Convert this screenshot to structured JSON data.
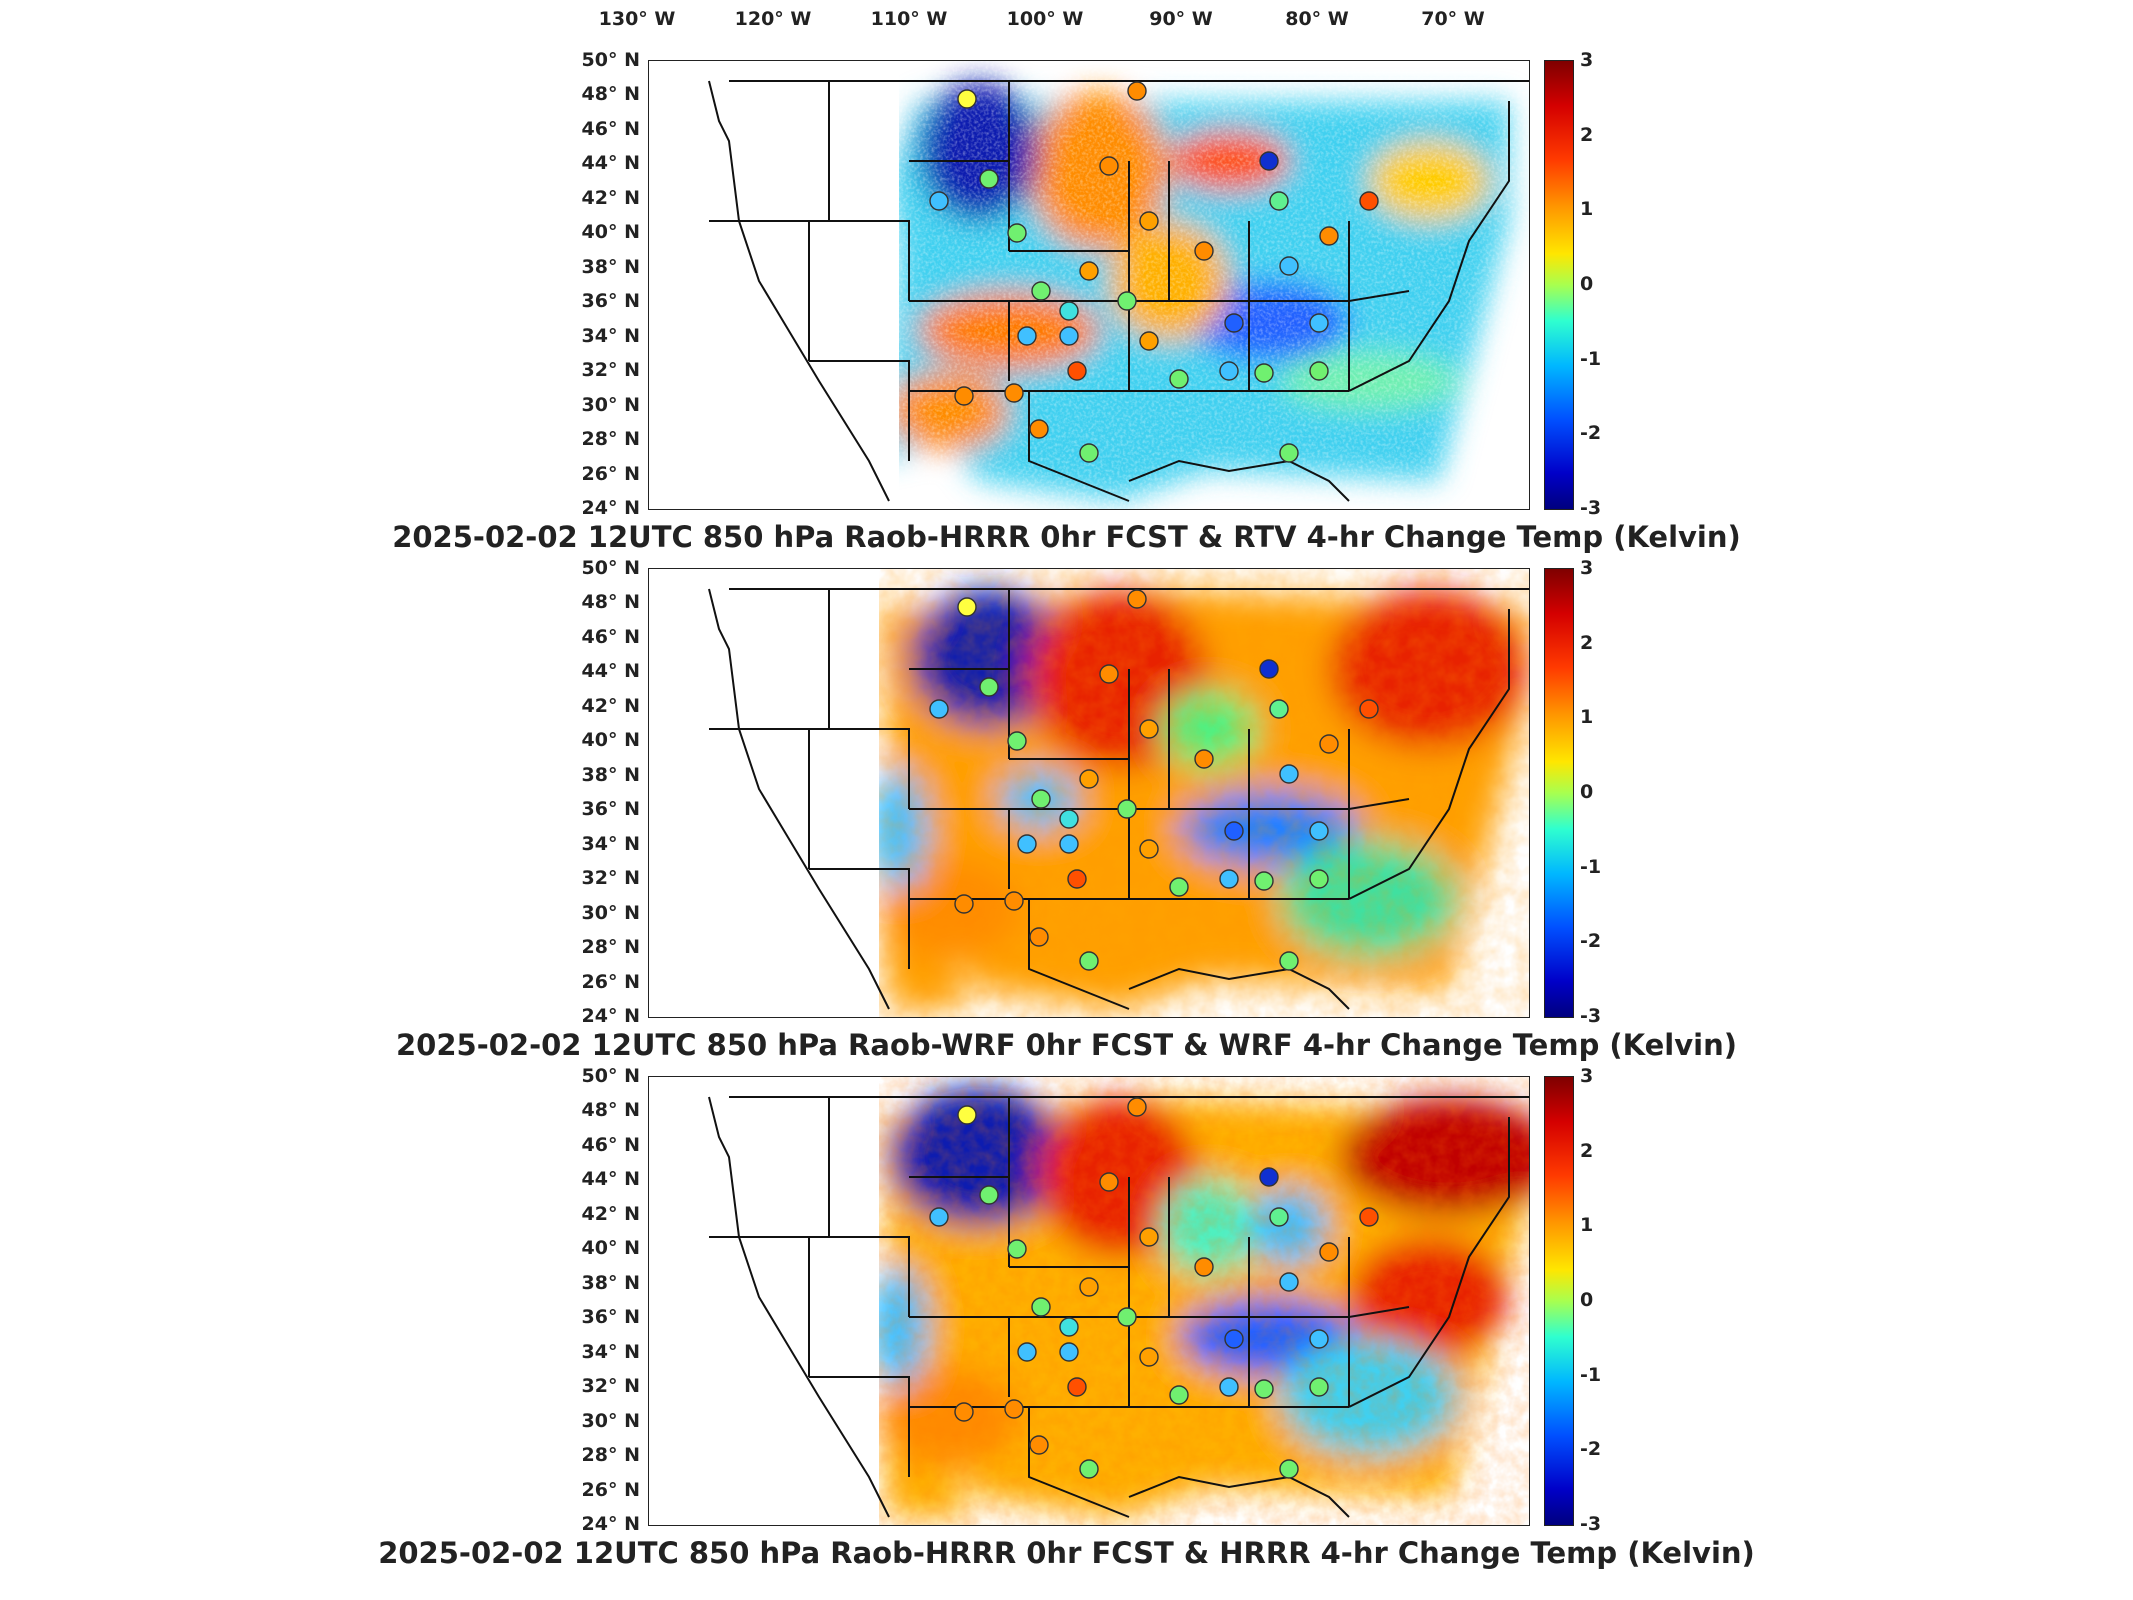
{
  "lon_labels": [
    "130° W",
    "120° W",
    "110° W",
    "100° W",
    "90° W",
    "80° W",
    "70° W"
  ],
  "lat_labels": [
    "50° N",
    "48° N",
    "46° N",
    "44° N",
    "42° N",
    "40° N",
    "38° N",
    "36° N",
    "34° N",
    "32° N",
    "30° N",
    "28° N",
    "26° N",
    "24° N"
  ],
  "colorbar": {
    "ticks": [
      "3",
      "2",
      "1",
      "0",
      "-1",
      "-2",
      "-3"
    ],
    "min": -3,
    "max": 3,
    "units": "Kelvin"
  },
  "panels": [
    {
      "title": "2025-02-02 12UTC 850 hPa Raob-HRRR 0hr FCST & RTV 4-hr Change Temp (Kelvin)"
    },
    {
      "title": "2025-02-02 12UTC 850 hPa Raob-WRF 0hr FCST & WRF 4-hr Change Temp (Kelvin)"
    },
    {
      "title": "2025-02-02 12UTC 850 hPa Raob-HRRR 0hr FCST & HRRR 4-hr Change Temp (Kelvin)"
    }
  ]
}
